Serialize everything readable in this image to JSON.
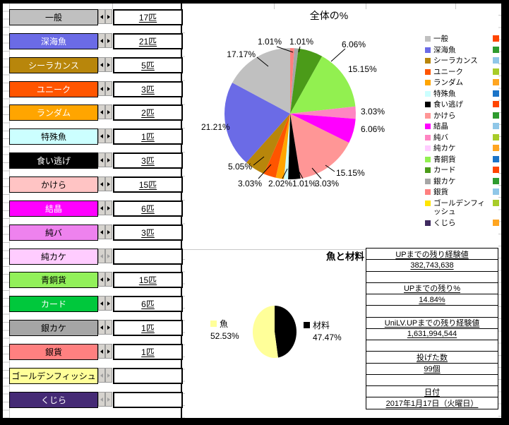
{
  "window": {
    "background": "#FFFFFF",
    "frame_color": "#000000"
  },
  "left_panel": {
    "rows": [
      {
        "label": "一般",
        "count": "17匹",
        "bg": "#C0C0C0",
        "fg": "#000000"
      },
      {
        "label": "深海魚",
        "count": "21匹",
        "bg": "#6B6BE6",
        "fg": "#FFFFFF"
      },
      {
        "label": "シーラカンス",
        "count": "5匹",
        "bg": "#B8860B",
        "fg": "#FFFFFF"
      },
      {
        "label": "ユニーク",
        "count": "3匹",
        "bg": "#FF5500",
        "fg": "#FFFFFF"
      },
      {
        "label": "ランダム",
        "count": "2匹",
        "bg": "#FFA500",
        "fg": "#FFFFFF"
      },
      {
        "label": "特殊魚",
        "count": "1匹",
        "bg": "#CCFFFF",
        "fg": "#000000"
      },
      {
        "label": "食い逃げ",
        "count": "3匹",
        "bg": "#000000",
        "fg": "#FFFFFF"
      },
      {
        "label": "かけら",
        "count": "15匹",
        "bg": "#FFC4C4",
        "fg": "#000000"
      },
      {
        "label": "結晶",
        "count": "6匹",
        "bg": "#FF00FF",
        "fg": "#FFFFFF"
      },
      {
        "label": "純バ",
        "count": "3匹",
        "bg": "#EE82EE",
        "fg": "#000000"
      },
      {
        "label": "純カケ",
        "count": "",
        "bg": "#FFCCFF",
        "fg": "#000000"
      },
      {
        "label": "青銅貨",
        "count": "15匹",
        "bg": "#92F05A",
        "fg": "#000000"
      },
      {
        "label": "カード",
        "count": "6匹",
        "bg": "#00C83C",
        "fg": "#FFFFFF"
      },
      {
        "label": "銀カケ",
        "count": "1匹",
        "bg": "#A6A6A6",
        "fg": "#000000"
      },
      {
        "label": "銀貨",
        "count": "1匹",
        "bg": "#FF8080",
        "fg": "#000000"
      },
      {
        "label": "ゴールデンフィッシュ",
        "count": "",
        "bg": "#FFFF99",
        "fg": "#000000"
      },
      {
        "label": "くじら",
        "count": "",
        "bg": "#452A75",
        "fg": "#FFFFFF"
      }
    ]
  },
  "chart_data": [
    {
      "type": "pie",
      "title": "全体の%",
      "legend_position": "right",
      "start_angle_deg": -90,
      "plot_reverse_order_clockwise": true,
      "categories": [
        "一般",
        "深海魚",
        "シーラカンス",
        "ユニーク",
        "ランダム",
        "特殊魚",
        "食い逃げ",
        "かけら",
        "結晶",
        "純バ",
        "純カケ",
        "青銅貨",
        "カード",
        "銀カケ",
        "銀貨",
        "ゴールデンフィッシュ",
        "くじら"
      ],
      "values_pct": [
        17.17,
        21.21,
        5.05,
        3.03,
        2.02,
        1.01,
        3.03,
        15.15,
        6.06,
        3.03,
        0,
        15.15,
        6.06,
        1.01,
        1.01,
        0,
        0
      ],
      "colors": [
        "#C0C0C0",
        "#6B6BE6",
        "#B8860B",
        "#FF5500",
        "#FFA500",
        "#CCFFFF",
        "#000000",
        "#FF9696",
        "#FF00FF",
        "#FF85C2",
        "#FFCCFF",
        "#92F050",
        "#4B9B19",
        "#A6A6A6",
        "#FF8080",
        "#FFE500",
        "#3F2A5F"
      ],
      "label_format": "percent"
    },
    {
      "type": "pie",
      "title": "魚と材料",
      "start_angle_deg": -90,
      "plot_reverse_order_clockwise": true,
      "categories": [
        "魚",
        "材料"
      ],
      "values_pct": [
        52.53,
        47.47
      ],
      "colors": [
        "#FFFF99",
        "#000000"
      ],
      "label_format": "name_percent"
    }
  ],
  "secondary_legend": {
    "cycle_colors": [
      "#FF4500",
      "#2E9B2E",
      "#8FC7E8",
      "#A8CC29",
      "#FFA520",
      "#1B74C8"
    ]
  },
  "stats_panel": {
    "rows": [
      "UPまでの残り経験値",
      "382,743,638",
      "",
      "UPまでの残り%",
      "14.84%",
      "",
      "UniLV.UPまでの残り経験値",
      "1,631,994,544",
      "",
      "投げた数",
      "99個",
      "",
      "日付",
      "2017年1月17日（火曜日）"
    ]
  }
}
